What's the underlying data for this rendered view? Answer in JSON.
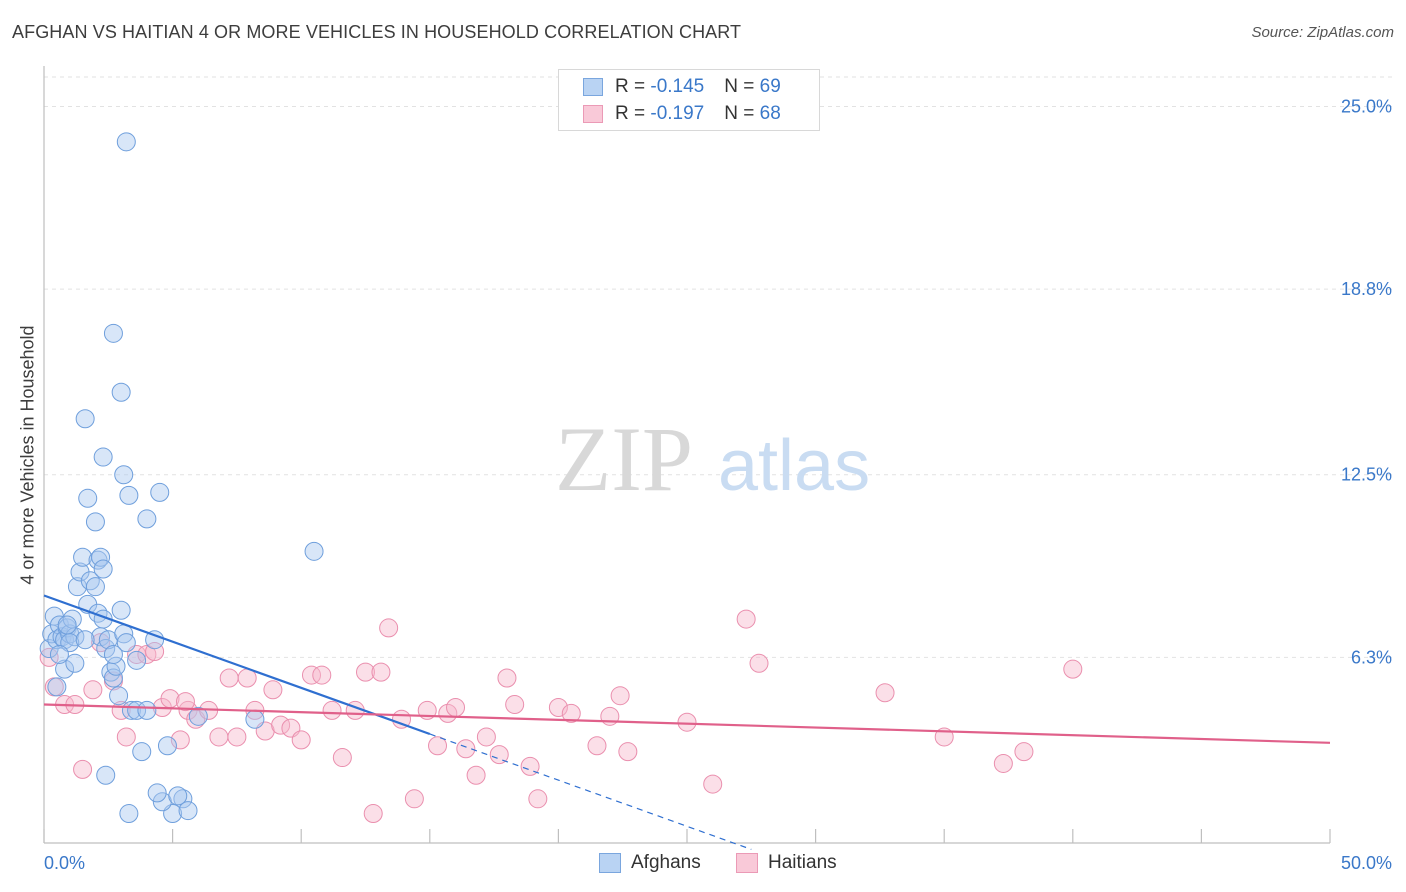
{
  "title": "AFGHAN VS HAITIAN 4 OR MORE VEHICLES IN HOUSEHOLD CORRELATION CHART",
  "source": "Source: ZipAtlas.com",
  "watermark": {
    "zip": "ZIP",
    "atlas": "atlas"
  },
  "legend": {
    "afghans": {
      "r_label": "R = ",
      "r_value": "-0.145",
      "n_label": "N = ",
      "n_value": "69"
    },
    "haitians": {
      "r_label": "R = ",
      "r_value": "-0.197",
      "n_label": "N = ",
      "n_value": "68"
    }
  },
  "bottom_legend": {
    "afghans": "Afghans",
    "haitians": "Haitians"
  },
  "colors": {
    "afghans_fill": "#a8c8f0",
    "afghans_stroke": "#6f9fdc",
    "afghans_line": "#2f6fd0",
    "haitians_fill": "#f6b8cc",
    "haitians_stroke": "#ea8fae",
    "haitians_line": "#e0608a",
    "tick_label": "#3a78c9",
    "grid": "#e2e2e2"
  },
  "chart_data": {
    "type": "scatter",
    "title": "AFGHAN VS HAITIAN 4 OR MORE VEHICLES IN HOUSEHOLD CORRELATION CHART",
    "xlabel": "",
    "ylabel": "4 or more Vehicles in Household",
    "xlim": [
      0,
      50
    ],
    "ylim": [
      0,
      26
    ],
    "x_tick_labels": [
      "0.0%",
      "50.0%"
    ],
    "y_ticks": [
      6.3,
      12.5,
      18.8,
      25.0
    ],
    "y_tick_labels": [
      "6.3%",
      "12.5%",
      "18.8%",
      "25.0%"
    ],
    "grid": "horizontal dashed",
    "series": [
      {
        "name": "Afghans",
        "r": -0.145,
        "n": 69,
        "trend": {
          "x0": 0,
          "y0": 8.4,
          "x1": 15,
          "y1": 3.7,
          "dashed_to_x": 27.5
        },
        "points": [
          [
            0.2,
            6.6
          ],
          [
            0.3,
            7.1
          ],
          [
            0.4,
            7.7
          ],
          [
            0.5,
            6.9
          ],
          [
            0.6,
            7.4
          ],
          [
            0.7,
            7.0
          ],
          [
            0.8,
            6.9
          ],
          [
            0.9,
            7.3
          ],
          [
            1.0,
            7.1
          ],
          [
            1.1,
            7.6
          ],
          [
            1.2,
            7.0
          ],
          [
            0.5,
            5.3
          ],
          [
            0.8,
            5.9
          ],
          [
            1.0,
            6.8
          ],
          [
            1.3,
            8.7
          ],
          [
            1.4,
            9.2
          ],
          [
            1.5,
            9.7
          ],
          [
            1.7,
            8.1
          ],
          [
            1.8,
            8.9
          ],
          [
            2.0,
            8.7
          ],
          [
            2.1,
            9.6
          ],
          [
            2.2,
            9.7
          ],
          [
            2.3,
            9.3
          ],
          [
            2.1,
            7.8
          ],
          [
            2.3,
            7.6
          ],
          [
            2.0,
            10.9
          ],
          [
            1.6,
            14.4
          ],
          [
            1.7,
            11.7
          ],
          [
            2.3,
            13.1
          ],
          [
            2.2,
            7.0
          ],
          [
            2.4,
            6.6
          ],
          [
            2.5,
            6.9
          ],
          [
            2.6,
            5.8
          ],
          [
            2.7,
            5.6
          ],
          [
            2.8,
            6.0
          ],
          [
            2.9,
            5.0
          ],
          [
            3.0,
            7.9
          ],
          [
            3.1,
            7.1
          ],
          [
            3.2,
            6.8
          ],
          [
            3.4,
            4.5
          ],
          [
            3.6,
            4.5
          ],
          [
            3.8,
            3.1
          ],
          [
            4.0,
            4.5
          ],
          [
            4.3,
            6.9
          ],
          [
            4.8,
            3.3
          ],
          [
            5.0,
            1.0
          ],
          [
            4.6,
            1.4
          ],
          [
            4.4,
            1.7
          ],
          [
            5.4,
            1.5
          ],
          [
            5.6,
            1.1
          ],
          [
            6.0,
            4.3
          ],
          [
            2.7,
            17.3
          ],
          [
            3.0,
            15.3
          ],
          [
            3.1,
            12.5
          ],
          [
            3.2,
            23.8
          ],
          [
            3.3,
            11.8
          ],
          [
            4.0,
            11.0
          ],
          [
            4.5,
            11.9
          ],
          [
            8.2,
            4.2
          ],
          [
            10.5,
            9.9
          ],
          [
            2.4,
            2.3
          ],
          [
            3.3,
            1.0
          ],
          [
            5.2,
            1.6
          ],
          [
            0.6,
            6.4
          ],
          [
            1.2,
            6.1
          ],
          [
            0.9,
            7.4
          ],
          [
            1.6,
            6.9
          ],
          [
            2.7,
            6.4
          ],
          [
            3.6,
            6.2
          ]
        ]
      },
      {
        "name": "Haitians",
        "r": -0.197,
        "n": 68,
        "trend": {
          "x0": 0,
          "y0": 4.7,
          "x1": 50,
          "y1": 3.4
        },
        "points": [
          [
            0.2,
            6.3
          ],
          [
            0.4,
            5.3
          ],
          [
            0.8,
            4.7
          ],
          [
            1.2,
            4.7
          ],
          [
            1.5,
            2.5
          ],
          [
            1.9,
            5.2
          ],
          [
            2.2,
            6.8
          ],
          [
            2.7,
            5.5
          ],
          [
            3.0,
            4.5
          ],
          [
            3.2,
            3.6
          ],
          [
            3.6,
            6.4
          ],
          [
            4.0,
            6.4
          ],
          [
            4.3,
            6.5
          ],
          [
            4.6,
            4.6
          ],
          [
            4.9,
            4.9
          ],
          [
            5.3,
            3.5
          ],
          [
            5.6,
            4.5
          ],
          [
            5.9,
            4.2
          ],
          [
            6.4,
            4.5
          ],
          [
            6.8,
            3.6
          ],
          [
            7.2,
            5.6
          ],
          [
            7.5,
            3.6
          ],
          [
            7.9,
            5.6
          ],
          [
            8.2,
            4.5
          ],
          [
            8.6,
            3.8
          ],
          [
            8.9,
            5.2
          ],
          [
            9.2,
            4.0
          ],
          [
            9.6,
            3.9
          ],
          [
            10.0,
            3.5
          ],
          [
            10.4,
            5.7
          ],
          [
            10.8,
            5.7
          ],
          [
            11.2,
            4.5
          ],
          [
            11.6,
            2.9
          ],
          [
            12.1,
            4.5
          ],
          [
            12.5,
            5.8
          ],
          [
            12.8,
            1.0
          ],
          [
            13.1,
            5.8
          ],
          [
            13.4,
            7.3
          ],
          [
            13.9,
            4.2
          ],
          [
            14.4,
            1.5
          ],
          [
            14.9,
            4.5
          ],
          [
            15.3,
            3.3
          ],
          [
            15.7,
            4.4
          ],
          [
            16.0,
            4.6
          ],
          [
            16.4,
            3.2
          ],
          [
            16.8,
            2.3
          ],
          [
            17.2,
            3.6
          ],
          [
            17.7,
            3.0
          ],
          [
            18.0,
            5.6
          ],
          [
            18.3,
            4.7
          ],
          [
            18.9,
            2.6
          ],
          [
            19.2,
            1.5
          ],
          [
            20.0,
            4.6
          ],
          [
            20.5,
            4.4
          ],
          [
            21.5,
            3.3
          ],
          [
            22.0,
            4.3
          ],
          [
            22.4,
            5.0
          ],
          [
            22.7,
            3.1
          ],
          [
            25.0,
            4.1
          ],
          [
            26.0,
            2.0
          ],
          [
            27.3,
            7.6
          ],
          [
            27.8,
            6.1
          ],
          [
            32.7,
            5.1
          ],
          [
            35.0,
            3.6
          ],
          [
            37.3,
            2.7
          ],
          [
            38.1,
            3.1
          ],
          [
            40.0,
            5.9
          ],
          [
            5.5,
            4.8
          ]
        ]
      }
    ]
  }
}
